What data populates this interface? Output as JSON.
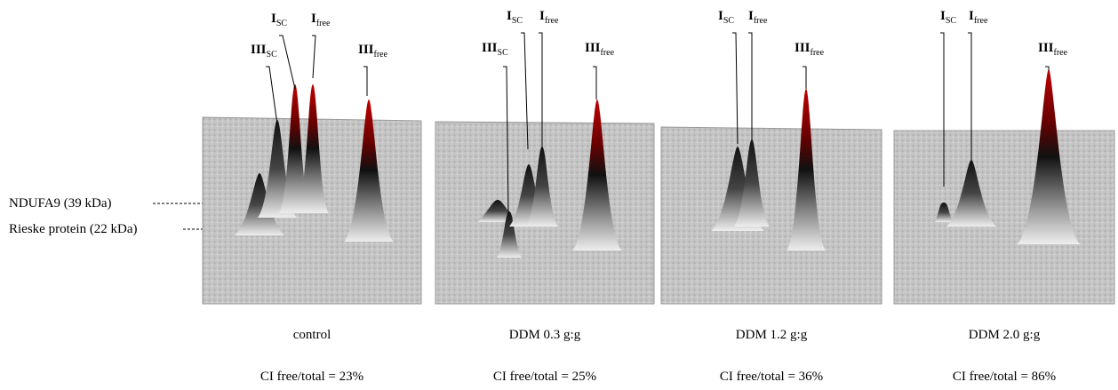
{
  "side_labels": [
    {
      "text": "NDUFA9 (39 kDa)"
    },
    {
      "text": "Rieske protein (22 kDa)"
    }
  ],
  "panels": [
    {
      "condition": "control",
      "ratio": "CI free/total = 23%",
      "peak_labels": [
        {
          "main": "III",
          "sub": "SC"
        },
        {
          "main": "I",
          "sub": "SC"
        },
        {
          "main": "I",
          "sub": "free"
        },
        {
          "main": "III",
          "sub": "free"
        }
      ]
    },
    {
      "condition": "DDM 0.3 g:g",
      "ratio": "CI free/total = 25%",
      "peak_labels": [
        {
          "main": "III",
          "sub": "SC"
        },
        {
          "main": "I",
          "sub": "SC"
        },
        {
          "main": "I",
          "sub": "free"
        },
        {
          "main": "III",
          "sub": "free"
        }
      ]
    },
    {
      "condition": "DDM 1.2 g:g",
      "ratio": "CI free/total = 36%",
      "peak_labels": [
        {
          "main": "I",
          "sub": "SC"
        },
        {
          "main": "I",
          "sub": "free"
        },
        {
          "main": "III",
          "sub": "free"
        }
      ]
    },
    {
      "condition": "DDM 2.0 g:g",
      "ratio": "CI free/total = 86%",
      "peak_labels": [
        {
          "main": "I",
          "sub": "SC"
        },
        {
          "main": "I",
          "sub": "free"
        },
        {
          "main": "III",
          "sub": "free"
        }
      ]
    }
  ]
}
